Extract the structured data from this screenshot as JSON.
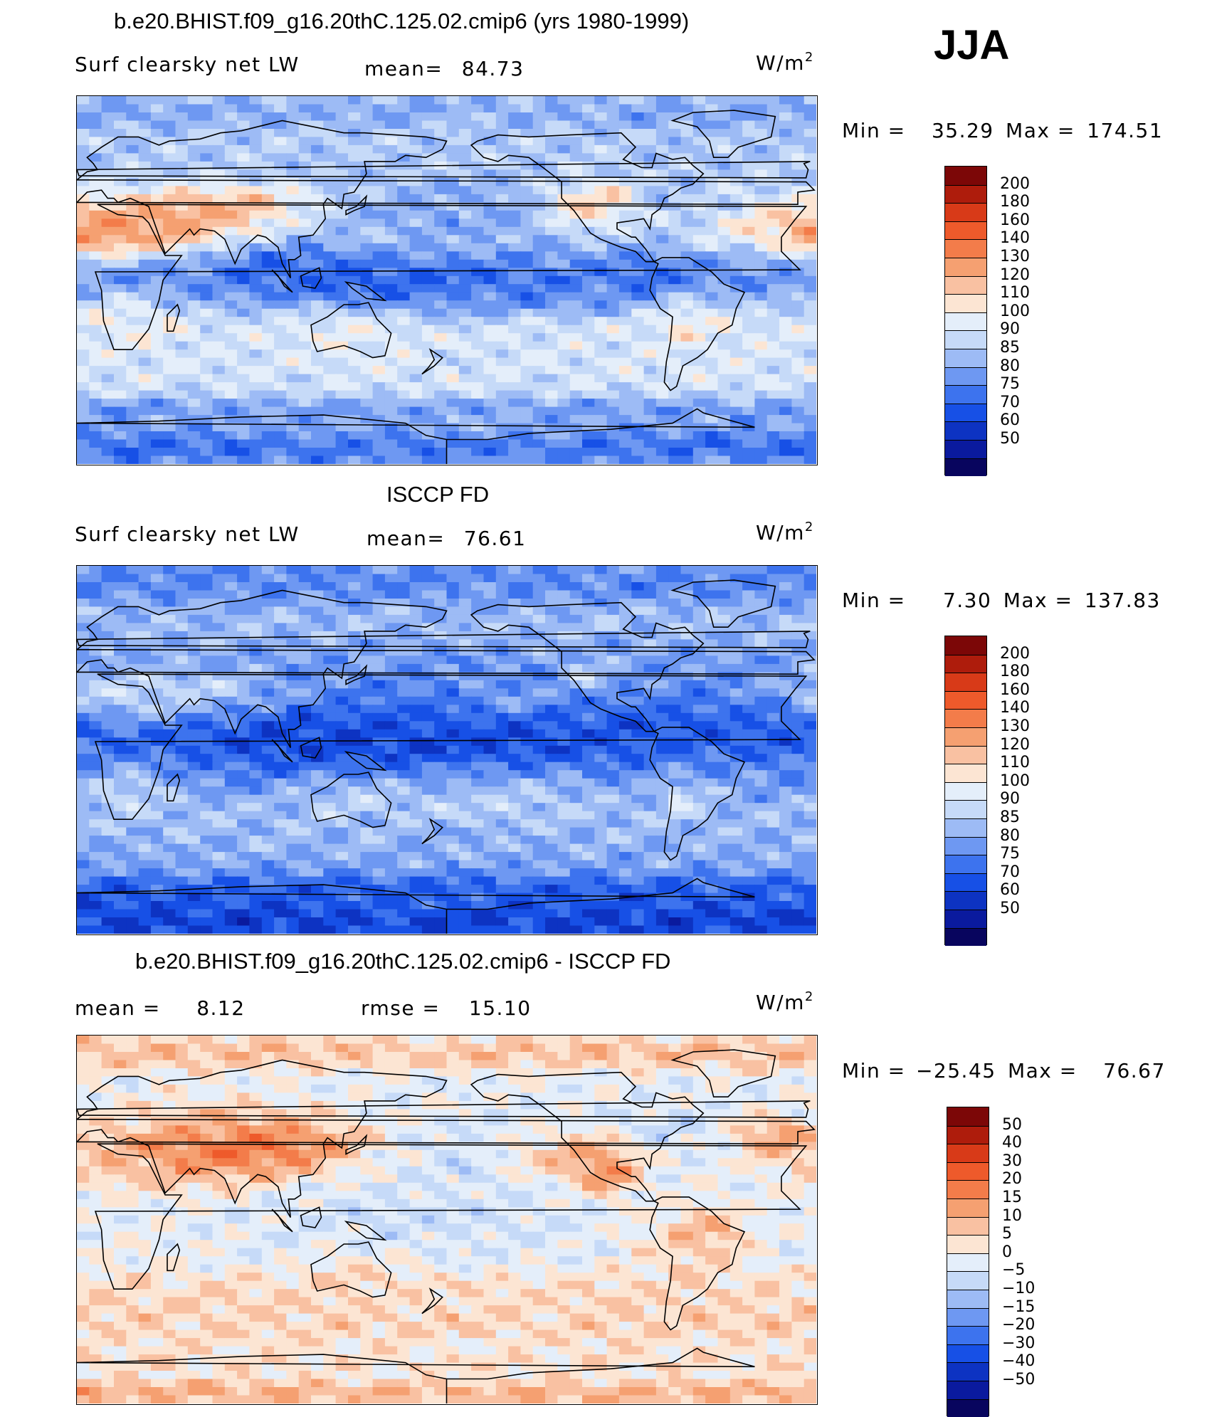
{
  "season": "JJA",
  "units_main": "W/m",
  "units_exp": "2",
  "palette_absolute": [
    "#08055e",
    "#0a1a9e",
    "#0d33c2",
    "#1750e6",
    "#3d73ee",
    "#6e98f2",
    "#9dbbf5",
    "#c6daf8",
    "#e4eefa",
    "#fce5d3",
    "#f9c1a2",
    "#f5a071",
    "#f37c4a",
    "#ee5a2b",
    "#d83a18",
    "#ae1c0c",
    "#7c0707"
  ],
  "palette_diff": [
    "#08055e",
    "#0a1a9e",
    "#0d33c2",
    "#1750e6",
    "#3d73ee",
    "#6e98f2",
    "#9dbbf5",
    "#c6daf8",
    "#e4eefa",
    "#fce5d3",
    "#f9c1a2",
    "#f5a071",
    "#f37c4a",
    "#ee5a2b",
    "#d83a18",
    "#ae1c0c",
    "#7c0707"
  ],
  "panels": [
    {
      "title": "b.e20.BHIST.f09_g16.20thC.125.02.cmip6 (yrs 1980-1999)",
      "variable": "Surf clearsky net LW",
      "mean_label": "mean=",
      "mean_value": "84.73",
      "min_label": "Min =",
      "min_value": "35.29",
      "max_label": "Max =",
      "max_value": "174.51",
      "legend_levels": [
        "200",
        "180",
        "160",
        "140",
        "130",
        "120",
        "110",
        "100",
        "90",
        "85",
        "80",
        "75",
        "70",
        "60",
        "50"
      ],
      "field_scheme": "model"
    },
    {
      "title": "ISCCP FD",
      "variable": "Surf clearsky net LW",
      "mean_label": "mean=",
      "mean_value": "76.61",
      "min_label": "Min =",
      "min_value": "7.30",
      "max_label": "Max =",
      "max_value": "137.83",
      "legend_levels": [
        "200",
        "180",
        "160",
        "140",
        "130",
        "120",
        "110",
        "100",
        "90",
        "85",
        "80",
        "75",
        "70",
        "60",
        "50"
      ],
      "field_scheme": "obs"
    },
    {
      "title": "b.e20.BHIST.f09_g16.20thC.125.02.cmip6 - ISCCP FD",
      "mean_label": "mean =",
      "mean_value": "8.12",
      "rmse_label": "rmse =",
      "rmse_value": "15.10",
      "min_label": "Min =",
      "min_value": "−25.45",
      "max_label": "Max =",
      "max_value": "76.67",
      "legend_levels": [
        "50",
        "40",
        "30",
        "20",
        "15",
        "10",
        "5",
        "0",
        "−5",
        "−10",
        "−15",
        "−20",
        "−30",
        "−40",
        "−50"
      ],
      "field_scheme": "diff"
    }
  ]
}
